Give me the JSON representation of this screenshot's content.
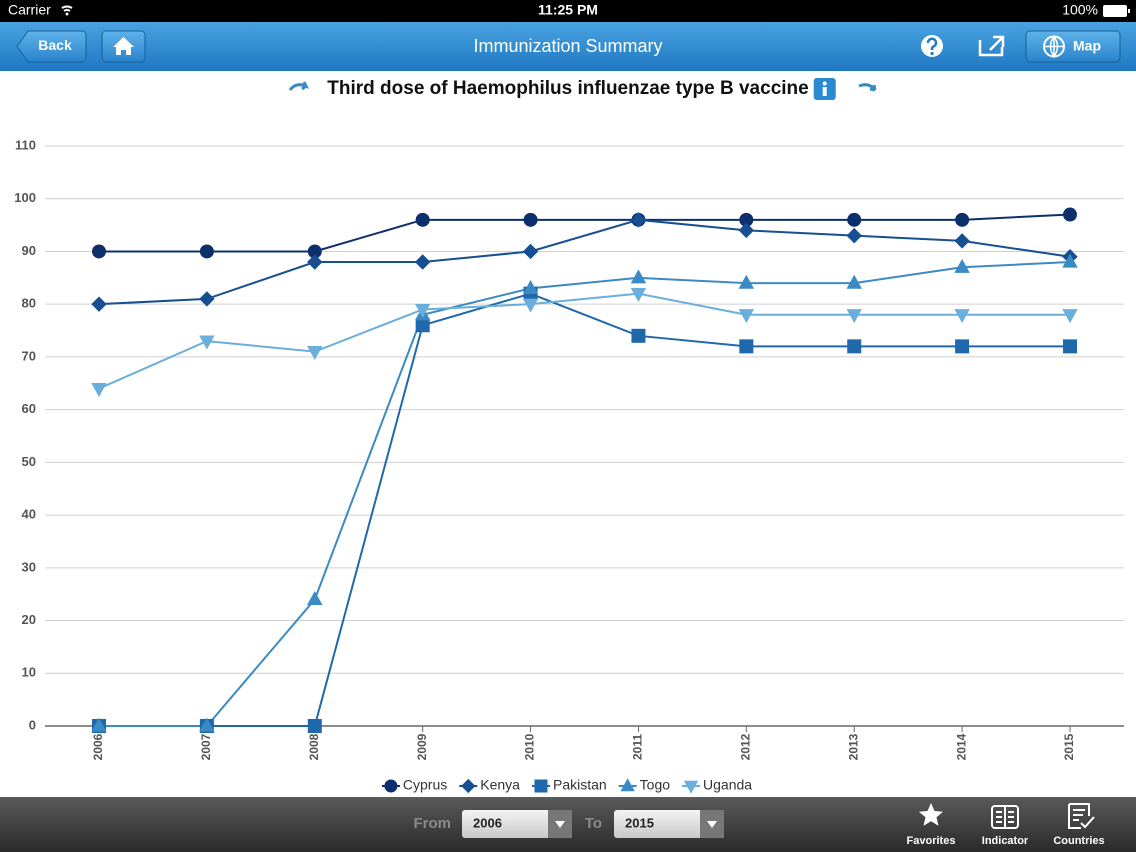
{
  "status_bar": {
    "carrier": "Carrier",
    "time": "11:25 PM",
    "battery": "100%"
  },
  "nav_bar": {
    "back": "Back",
    "title": "Immunization Summary",
    "map": "Map"
  },
  "chart_data": {
    "type": "line",
    "title": "Third dose of Haemophilus influenzae type B vaccine",
    "categories": [
      "2006",
      "2007",
      "2008",
      "2009",
      "2010",
      "2011",
      "2012",
      "2013",
      "2014",
      "2015"
    ],
    "series": [
      {
        "name": "Cyprus",
        "color": "#0d2f6b",
        "marker": "circle",
        "values": [
          90,
          90,
          90,
          96,
          96,
          96,
          96,
          96,
          96,
          97
        ]
      },
      {
        "name": "Kenya",
        "color": "#174f92",
        "marker": "diamond",
        "values": [
          80,
          81,
          88,
          88,
          90,
          96,
          94,
          93,
          92,
          89
        ]
      },
      {
        "name": "Pakistan",
        "color": "#1f68ab",
        "marker": "square",
        "values": [
          0,
          0,
          0,
          76,
          82,
          74,
          72,
          72,
          72,
          72
        ]
      },
      {
        "name": "Togo",
        "color": "#3a8ac3",
        "marker": "triangle",
        "values": [
          0,
          0,
          24,
          78,
          83,
          85,
          84,
          84,
          87,
          88
        ]
      },
      {
        "name": "Uganda",
        "color": "#6aaedb",
        "marker": "triangle-down",
        "values": [
          64,
          73,
          71,
          79,
          80,
          82,
          78,
          78,
          78,
          78
        ]
      }
    ],
    "ylim": [
      0,
      110
    ],
    "yticks": [
      0,
      10,
      20,
      30,
      40,
      50,
      60,
      70,
      80,
      90,
      100,
      110
    ],
    "grid": true,
    "legend": "bottom"
  },
  "toolbar": {
    "from_label": "From",
    "from_value": "2006",
    "to_label": "To",
    "to_value": "2015",
    "tabs": [
      "Favorites",
      "Indicator",
      "Countries"
    ]
  }
}
